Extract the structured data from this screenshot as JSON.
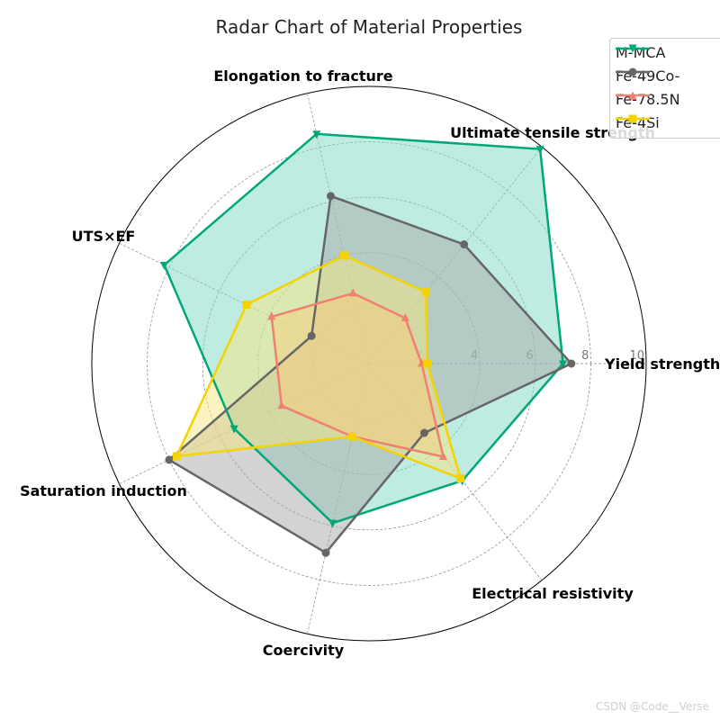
{
  "chart_data": {
    "type": "radar",
    "title": "Radar Chart of Material Properties",
    "axes": [
      "Yield strength",
      "Ultimate tensile strength",
      "Elongation to fracture",
      "UTS×EF",
      "Saturation induction",
      "Coercivity",
      "Electrical resistivity"
    ],
    "rlim": [
      0,
      10
    ],
    "r_ticks": [
      "2",
      "4",
      "6",
      "8",
      "10"
    ],
    "grid": true,
    "legend_position": "top-right",
    "series": [
      {
        "name": "M-MCA",
        "values": [
          7.0,
          9.9,
          8.5,
          8.2,
          5.4,
          5.9,
          5.4
        ],
        "color": "#00a878",
        "fill": "#7fd9c6",
        "marker": "triangle-down"
      },
      {
        "name": "Fe-49Co-",
        "values": [
          7.3,
          5.5,
          6.2,
          2.3,
          8.0,
          7.0,
          3.2
        ],
        "color": "#666666",
        "fill": "#a8a8a8",
        "marker": "circle"
      },
      {
        "name": "Fe-78.5N",
        "values": [
          1.9,
          2.1,
          2.6,
          3.9,
          3.5,
          2.7,
          4.3
        ],
        "color": "#f08070",
        "fill": "#f5b27a",
        "marker": "triangle-up"
      },
      {
        "name": "Fe-4Si",
        "values": [
          2.1,
          3.3,
          4.0,
          4.9,
          7.7,
          2.7,
          5.3
        ],
        "color": "#f5d300",
        "fill": "#f5e680",
        "marker": "square"
      }
    ]
  },
  "watermark": "CSDN @Code__Verse"
}
